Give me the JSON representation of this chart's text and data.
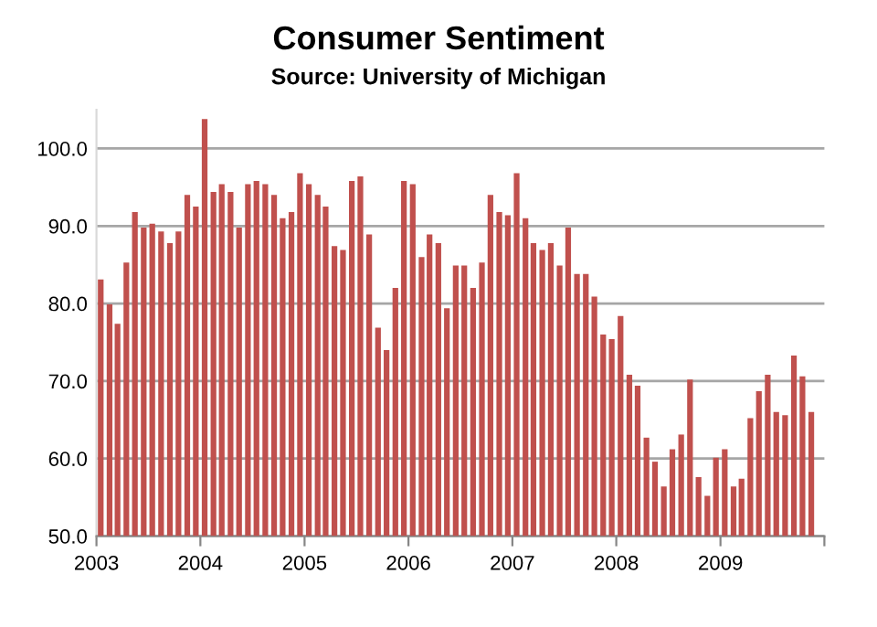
{
  "chart_data": {
    "type": "bar",
    "title": "Consumer Sentiment",
    "subtitle": "Source: University of Michigan",
    "x": [
      "2003-01",
      "2003-02",
      "2003-03",
      "2003-04",
      "2003-05",
      "2003-06",
      "2003-07",
      "2003-08",
      "2003-09",
      "2003-10",
      "2003-11",
      "2003-12",
      "2004-01",
      "2004-02",
      "2004-03",
      "2004-04",
      "2004-05",
      "2004-06",
      "2004-07",
      "2004-08",
      "2004-09",
      "2004-10",
      "2004-11",
      "2004-12",
      "2005-01",
      "2005-02",
      "2005-03",
      "2005-04",
      "2005-05",
      "2005-06",
      "2005-07",
      "2005-08",
      "2005-09",
      "2005-10",
      "2005-11",
      "2005-12",
      "2006-01",
      "2006-02",
      "2006-03",
      "2006-04",
      "2006-05",
      "2006-06",
      "2006-07",
      "2006-08",
      "2006-09",
      "2006-10",
      "2006-11",
      "2006-12",
      "2007-01",
      "2007-02",
      "2007-03",
      "2007-04",
      "2007-05",
      "2007-06",
      "2007-07",
      "2007-08",
      "2007-09",
      "2007-10",
      "2007-11",
      "2007-12",
      "2008-01",
      "2008-02",
      "2008-03",
      "2008-04",
      "2008-05",
      "2008-06",
      "2008-07",
      "2008-08",
      "2008-09",
      "2008-10",
      "2008-11",
      "2008-12",
      "2009-01",
      "2009-02",
      "2009-03",
      "2009-04",
      "2009-05",
      "2009-06",
      "2009-07",
      "2009-08",
      "2009-09",
      "2009-10",
      "2009-11"
    ],
    "values": [
      83.1,
      79.9,
      77.4,
      85.3,
      91.8,
      89.8,
      90.3,
      89.3,
      87.8,
      89.3,
      94.0,
      92.5,
      103.8,
      94.4,
      95.4,
      94.4,
      89.8,
      95.4,
      95.8,
      95.4,
      94.0,
      91.0,
      91.8,
      96.8,
      95.4,
      94.0,
      92.5,
      87.4,
      86.9,
      95.8,
      96.4,
      88.9,
      76.9,
      74.0,
      82.0,
      95.8,
      95.4,
      86.0,
      88.9,
      87.8,
      79.4,
      84.9,
      84.9,
      82.0,
      85.3,
      94.0,
      91.8,
      91.4,
      96.8,
      91.0,
      87.8,
      86.9,
      87.8,
      84.9,
      89.8,
      83.8,
      83.8,
      80.9,
      76.0,
      75.4,
      78.4,
      70.8,
      69.4,
      62.7,
      59.6,
      56.4,
      61.2,
      63.1,
      70.2,
      57.6,
      55.2,
      60.1,
      61.2,
      56.4,
      57.4,
      65.2,
      68.7,
      70.8,
      66.0,
      65.6,
      73.3,
      70.6,
      66.0
    ],
    "color": "#c0504d",
    "xlim": [
      "2003-01-01",
      "2010-01-01"
    ],
    "xticks": [
      "2003",
      "2004",
      "2005",
      "2006",
      "2007",
      "2008",
      "2009",
      {
        "value": "2010",
        "label": null
      }
    ],
    "ylim": [
      50,
      105
    ],
    "yticks": [
      {
        "value": 50,
        "label": "50.0"
      },
      {
        "value": 60,
        "label": "60.0"
      },
      {
        "value": 70,
        "label": "70.0"
      },
      {
        "value": 80,
        "label": "80.0"
      },
      {
        "value": 90,
        "label": "90.0"
      },
      {
        "value": 100,
        "label": "100.0"
      }
    ],
    "grid": "y",
    "legend": false
  }
}
